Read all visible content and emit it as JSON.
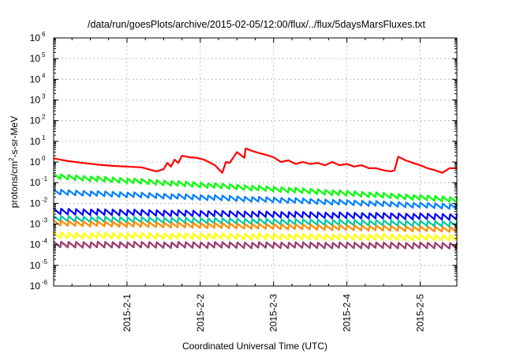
{
  "chart_data": {
    "type": "line",
    "title": "/data/run/goesPlots/archive/2015-02-05/12:00/flux/../flux/5daysMarsFluxes.txt",
    "xlabel": "Coordinated Universal Time (UTC)",
    "ylabel": {
      "base": "protons/cm",
      "sup": "2",
      "rest": "-s-sr-MeV"
    },
    "log_y": true,
    "xlim": [
      0.0,
      5.5
    ],
    "ylim": [
      -6,
      6
    ],
    "x_ticks": [
      {
        "x": 1,
        "label": "2015-2-1"
      },
      {
        "x": 2,
        "label": "2015-2-2"
      },
      {
        "x": 3,
        "label": "2015-2-3"
      },
      {
        "x": 4,
        "label": "2015-2-4"
      },
      {
        "x": 5,
        "label": "2015-2-5"
      }
    ],
    "y_ticks": [
      {
        "exp": -6,
        "label": "10",
        "sup": "-6"
      },
      {
        "exp": -5,
        "label": "10",
        "sup": "-5"
      },
      {
        "exp": -4,
        "label": "10",
        "sup": "-4"
      },
      {
        "exp": -3,
        "label": "10",
        "sup": "-3"
      },
      {
        "exp": -2,
        "label": "10",
        "sup": "-2"
      },
      {
        "exp": -1,
        "label": "10",
        "sup": "-1"
      },
      {
        "exp": 0,
        "label": "10",
        "sup": "0"
      },
      {
        "exp": 1,
        "label": "10",
        "sup": "1"
      },
      {
        "exp": 2,
        "label": "10",
        "sup": "2"
      },
      {
        "exp": 3,
        "label": "10",
        "sup": "3"
      },
      {
        "exp": 4,
        "label": "10",
        "sup": "4"
      },
      {
        "exp": 5,
        "label": "10",
        "sup": "5"
      },
      {
        "exp": 6,
        "label": "10",
        "sup": "6"
      }
    ],
    "grid": true,
    "series": [
      {
        "color": "#ff0000",
        "x": [
          0.0,
          0.2,
          0.4,
          0.6,
          0.8,
          1.0,
          1.2,
          1.4,
          1.5,
          1.55,
          1.6,
          1.65,
          1.7,
          1.75,
          1.85,
          1.95,
          2.05,
          2.2,
          2.3,
          2.35,
          2.4,
          2.5,
          2.6,
          2.62,
          2.7,
          2.8,
          2.9,
          3.0,
          3.1,
          3.2,
          3.3,
          3.4,
          3.5,
          3.6,
          3.7,
          3.8,
          3.9,
          4.0,
          4.1,
          4.2,
          4.3,
          4.4,
          4.5,
          4.6,
          4.65,
          4.7,
          4.8,
          4.9,
          5.0,
          5.1,
          5.2,
          5.3,
          5.4,
          5.5
        ],
        "y": [
          1.5,
          1.1,
          0.9,
          0.75,
          0.65,
          0.6,
          0.55,
          0.35,
          0.45,
          0.9,
          0.6,
          1.3,
          0.9,
          2.0,
          1.7,
          1.6,
          1.3,
          0.7,
          0.3,
          1.0,
          0.9,
          3.0,
          1.6,
          4.5,
          3.5,
          2.7,
          2.2,
          1.7,
          1.0,
          1.2,
          0.8,
          1.0,
          0.8,
          0.9,
          0.7,
          1.0,
          0.7,
          0.8,
          0.6,
          0.7,
          0.5,
          0.5,
          0.4,
          0.35,
          0.4,
          1.8,
          1.2,
          0.9,
          0.7,
          0.5,
          0.4,
          0.3,
          0.5,
          0.5
        ]
      },
      {
        "color": "#00ff00",
        "start": 0.2,
        "end": 0.015,
        "amp": 0.26
      },
      {
        "color": "#0080ff",
        "start": 0.035,
        "end": 0.007,
        "amp": 0.26
      },
      {
        "color": "#0000ff",
        "start": 0.004,
        "end": 0.0022,
        "amp": 0.3
      },
      {
        "color": "#00c8a0",
        "start": 0.0018,
        "end": 0.001,
        "amp": 0.28
      },
      {
        "color": "#ff8c00",
        "start": 0.0011,
        "end": 0.00055,
        "amp": 0.26
      },
      {
        "color": "#ffff00",
        "start": 0.00028,
        "end": 0.00022,
        "amp": 0.3
      },
      {
        "color": "#9b3a6e",
        "start": 0.0001,
        "end": 9e-05,
        "amp": 0.3
      }
    ]
  }
}
